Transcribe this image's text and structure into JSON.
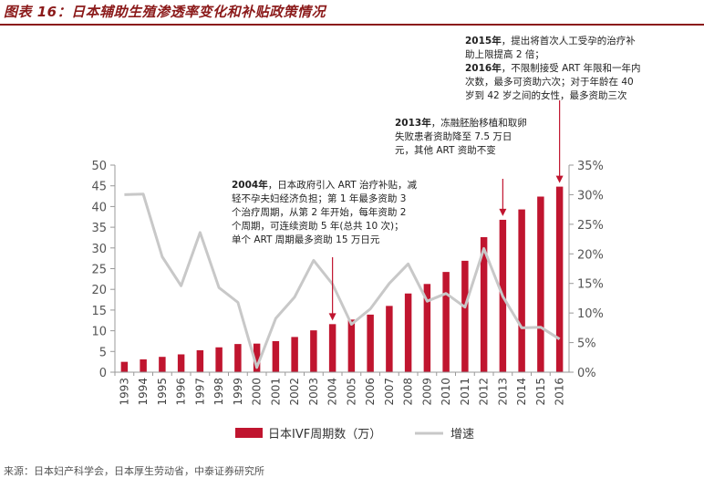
{
  "header": {
    "figure_title": "图表 16：日本辅助生殖渗透率变化和补贴政策情况"
  },
  "footer": {
    "source": "来源：日本妇产科学会，日本厚生劳动省，中泰证券研究所"
  },
  "annotations": [
    {
      "id": "a2015",
      "lines": [
        [
          "2015年",
          "，提出将首次人工受孕的治疗补"
        ],
        [
          "",
          "助上限提高 2 倍；"
        ]
      ]
    },
    {
      "id": "a2016",
      "lines": [
        [
          "2016年",
          "，不限制接受 ART 年限和一年内"
        ],
        [
          "",
          "次数，最多可资助六次；对于年龄在 40"
        ],
        [
          "",
          "岁到 42 岁之间的女性，最多资助三次"
        ]
      ]
    },
    {
      "id": "a2013",
      "lines": [
        [
          "2013年",
          "，冻融胚胎移植和取卵"
        ],
        [
          "",
          "失败患者资助降至 7.5 万日"
        ],
        [
          "",
          "元，其他 ART 资助不变"
        ]
      ]
    },
    {
      "id": "a2004",
      "lines": [
        [
          "2004年",
          "，日本政府引入 ART 治疗补贴，减"
        ],
        [
          "",
          "轻不孕夫妇经济负担；第 1 年最多资助 3"
        ],
        [
          "",
          "个治疗周期，从第 2 年开始，每年资助 2"
        ],
        [
          "",
          "个周期，可连续资助 5 年(总共 10 次)；"
        ],
        [
          "",
          "单个 ART 周期最多资助 15 万日元"
        ]
      ]
    }
  ],
  "chart_data": {
    "type": "bar",
    "categories": [
      "1993",
      "1994",
      "1995",
      "1996",
      "1997",
      "1998",
      "1999",
      "2000",
      "2001",
      "2002",
      "2003",
      "2004",
      "2005",
      "2006",
      "2007",
      "2008",
      "2009",
      "2010",
      "2011",
      "2012",
      "2013",
      "2014",
      "2015",
      "2016"
    ],
    "series": [
      {
        "name": "日本IVF周期数（万）",
        "type": "bar",
        "axis": "left",
        "color": "#c0152f",
        "values": [
          2.5,
          3.1,
          3.7,
          4.3,
          5.3,
          6.0,
          6.8,
          6.9,
          7.5,
          8.5,
          10.1,
          11.6,
          12.7,
          13.9,
          16.0,
          19.0,
          21.3,
          24.2,
          26.9,
          32.6,
          36.8,
          39.3,
          42.4,
          44.8
        ]
      },
      {
        "name": "增速",
        "type": "line",
        "axis": "right",
        "color": "#c8c8c8",
        "values": [
          30.0,
          30.1,
          19.5,
          14.6,
          23.6,
          14.3,
          11.8,
          0.8,
          9.1,
          12.7,
          18.9,
          14.9,
          8.1,
          10.7,
          15.0,
          18.3,
          12.0,
          13.3,
          11.0,
          20.9,
          12.8,
          7.5,
          7.6,
          5.6
        ]
      }
    ],
    "left_axis": {
      "min": 0,
      "max": 50,
      "step": 5,
      "tick_labels": [
        "0",
        "5",
        "10",
        "15",
        "20",
        "25",
        "30",
        "35",
        "40",
        "45",
        "50"
      ]
    },
    "right_axis": {
      "min": 0,
      "max": 35,
      "step": 5,
      "tick_labels": [
        "0%",
        "5%",
        "10%",
        "15%",
        "20%",
        "25%",
        "30%",
        "35%"
      ]
    },
    "arrows_at": [
      "2004",
      "2013",
      "2016"
    ],
    "arrow_color": "#c0152f",
    "grid": false,
    "legend_position": "bottom"
  }
}
